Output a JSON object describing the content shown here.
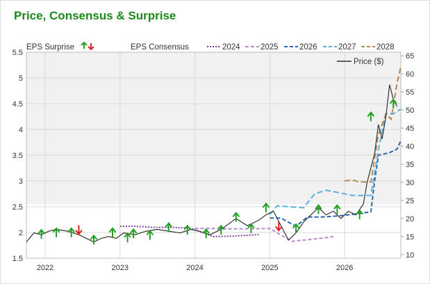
{
  "header": {
    "title": "Price, Consensus & Surprise"
  },
  "legend": {
    "surprise_label": "EPS Surprise",
    "consensus_label": "EPS Consensus",
    "price_label": "Price ($)",
    "years": [
      "2024",
      "2025",
      "2026",
      "2027",
      "2028"
    ]
  },
  "colors": {
    "title": "#1a8a1a",
    "price": "#333333",
    "beat": "#22a022",
    "miss": "#e02020",
    "c2024": "#7a3fa0",
    "c2025": "#b98ad0",
    "c2026": "#2a67b0",
    "c2027": "#5ab0e0",
    "c2028": "#b08a5a"
  },
  "chart_data": {
    "type": "line",
    "x_ticks": [
      "2022",
      "2023",
      "2024",
      "2025",
      "2026"
    ],
    "x_range": [
      2021.75,
      2026.75
    ],
    "y_left": {
      "range": [
        1.5,
        5.5
      ],
      "ticks": [
        "1.5",
        "2",
        "2.5",
        "3",
        "3.5",
        "4",
        "4.5",
        "5",
        "5.5"
      ]
    },
    "y_right": {
      "range": [
        9,
        66
      ],
      "ticks": [
        "10",
        "15",
        "20",
        "25",
        "30",
        "35",
        "40",
        "45",
        "50",
        "55",
        "60",
        "65"
      ]
    },
    "grid": true,
    "legend_position": "top",
    "price": {
      "name": "Price ($)",
      "axis": "right",
      "x": [
        2021.75,
        2021.85,
        2021.95,
        2022.05,
        2022.15,
        2022.3,
        2022.45,
        2022.55,
        2022.65,
        2022.75,
        2022.85,
        2022.95,
        2023.05,
        2023.2,
        2023.35,
        2023.5,
        2023.65,
        2023.8,
        2023.95,
        2024.05,
        2024.2,
        2024.35,
        2024.45,
        2024.55,
        2024.7,
        2024.85,
        2024.95,
        2025.05,
        2025.15,
        2025.25,
        2025.35,
        2025.45,
        2025.55,
        2025.65,
        2025.75,
        2025.85,
        2025.95,
        2026.05,
        2026.15,
        2026.25,
        2026.3,
        2026.4,
        2026.45,
        2026.5,
        2026.55,
        2026.6,
        2026.65,
        2026.7
      ],
      "y": [
        13.5,
        16,
        15.5,
        16.5,
        17,
        16.5,
        15.5,
        14.5,
        13.5,
        14.5,
        15,
        14.5,
        16,
        15.5,
        16.5,
        17,
        16.5,
        16,
        17,
        16.5,
        15.5,
        17,
        18.5,
        20,
        18,
        19.5,
        21,
        22,
        18,
        14,
        16,
        19,
        21,
        23,
        21,
        22,
        20,
        22,
        21,
        24,
        30,
        38,
        46,
        42,
        48,
        57,
        53,
        51
      ]
    },
    "eps_surprise": {
      "beats": [
        {
          "x": 2021.95,
          "y": 1.97
        },
        {
          "x": 2022.15,
          "y": 2.0
        },
        {
          "x": 2022.35,
          "y": 2.0
        },
        {
          "x": 2022.65,
          "y": 1.86
        },
        {
          "x": 2022.9,
          "y": 2.0
        },
        {
          "x": 2023.1,
          "y": 1.9
        },
        {
          "x": 2023.18,
          "y": 1.98
        },
        {
          "x": 2023.4,
          "y": 1.95
        },
        {
          "x": 2023.65,
          "y": 2.1
        },
        {
          "x": 2023.9,
          "y": 2.05
        },
        {
          "x": 2024.15,
          "y": 1.98
        },
        {
          "x": 2024.35,
          "y": 2.05
        },
        {
          "x": 2024.55,
          "y": 2.3
        },
        {
          "x": 2024.75,
          "y": 2.08
        },
        {
          "x": 2024.95,
          "y": 2.48
        },
        {
          "x": 2025.35,
          "y": 2.08
        },
        {
          "x": 2025.65,
          "y": 2.45
        },
        {
          "x": 2025.9,
          "y": 2.45
        },
        {
          "x": 2026.2,
          "y": 2.35
        },
        {
          "x": 2026.35,
          "y": 4.25
        },
        {
          "x": 2026.65,
          "y": 4.5
        }
      ],
      "misses": [
        {
          "x": 2022.45,
          "y": 2.05
        },
        {
          "x": 2025.12,
          "y": 2.12
        }
      ]
    },
    "eps_consensus": [
      {
        "name": "2024",
        "axis": "left",
        "x": [
          2023.0,
          2023.2,
          2023.45,
          2023.7,
          2023.95,
          2024.1,
          2024.25,
          2024.5,
          2024.75,
          2024.85
        ],
        "y": [
          2.12,
          2.12,
          2.1,
          2.1,
          2.08,
          2.0,
          1.92,
          1.93,
          1.95,
          1.96
        ]
      },
      {
        "name": "2025",
        "axis": "left",
        "x": [
          2024.0,
          2024.25,
          2024.5,
          2024.75,
          2025.0,
          2025.15,
          2025.3,
          2025.5,
          2025.75,
          2025.85
        ],
        "y": [
          2.08,
          2.08,
          2.07,
          2.07,
          2.08,
          1.95,
          1.83,
          1.86,
          1.9,
          1.92
        ]
      },
      {
        "name": "2026",
        "axis": "left",
        "x": [
          2025.0,
          2025.15,
          2025.25,
          2025.35,
          2025.5,
          2025.7,
          2025.9,
          2026.1,
          2026.35,
          2026.4,
          2026.45,
          2026.6,
          2026.7,
          2026.75
        ],
        "y": [
          2.28,
          2.28,
          2.2,
          2.12,
          2.3,
          2.3,
          2.32,
          2.35,
          2.4,
          3.0,
          3.5,
          3.55,
          3.62,
          3.78
        ]
      },
      {
        "name": "2027",
        "axis": "left",
        "x": [
          2025.0,
          2025.1,
          2025.25,
          2025.45,
          2025.6,
          2025.75,
          2025.9,
          2026.1,
          2026.35,
          2026.45,
          2026.55,
          2026.65,
          2026.75
        ],
        "y": [
          2.35,
          2.52,
          2.5,
          2.48,
          2.75,
          2.82,
          2.78,
          2.72,
          2.72,
          3.6,
          4.3,
          4.3,
          4.4
        ]
      },
      {
        "name": "2028",
        "axis": "left",
        "x": [
          2026.0,
          2026.1,
          2026.2,
          2026.35,
          2026.45,
          2026.55,
          2026.62,
          2026.7,
          2026.75
        ],
        "y": [
          3.0,
          3.02,
          2.98,
          2.98,
          3.9,
          4.3,
          4.2,
          4.9,
          5.22
        ]
      }
    ]
  }
}
